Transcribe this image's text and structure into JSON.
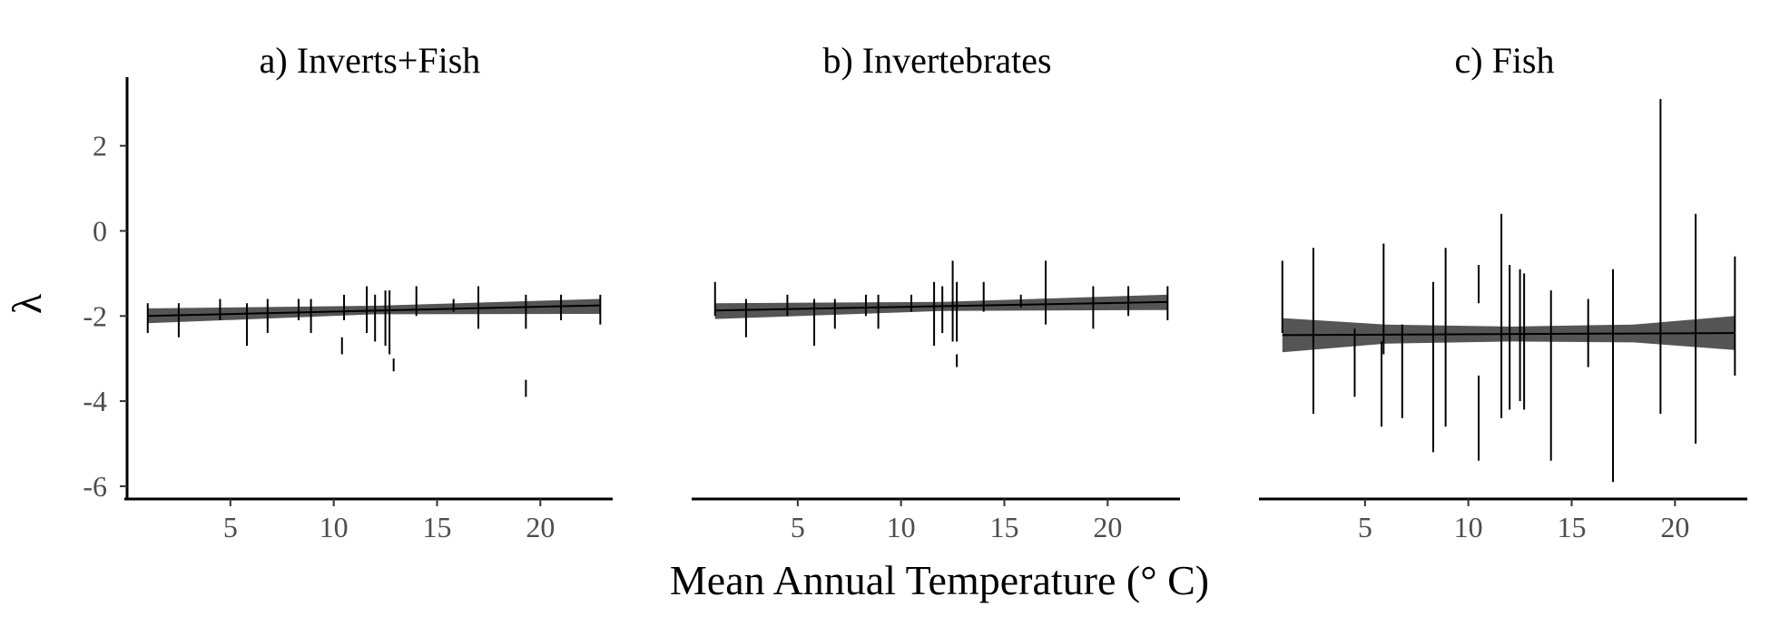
{
  "figure": {
    "xlabel": "Mean Annual Temperature (° C)",
    "ylabel": "λ"
  },
  "chart_data": [
    {
      "type": "scatter",
      "title": "a) Inverts+Fish",
      "xlim": [
        0,
        23.5
      ],
      "ylim": [
        -6.3,
        3.4
      ],
      "x_ticks": [
        5,
        10,
        15,
        20
      ],
      "y_ticks": [
        2,
        0,
        -2,
        -4,
        -6
      ],
      "y_tick_labels": [
        "2",
        "0",
        "-2",
        "-4",
        "-6"
      ],
      "fit": {
        "x": [
          1.0,
          22.9
        ],
        "y": [
          -2.0,
          -1.75
        ]
      },
      "ci": {
        "x": [
          1.0,
          12.0,
          22.9
        ],
        "lower": [
          -2.17,
          -1.96,
          -1.95
        ],
        "upper": [
          -1.82,
          -1.76,
          -1.6
        ]
      },
      "points": [
        {
          "x": 1.0,
          "lo": -2.4,
          "hi": -1.7
        },
        {
          "x": 2.5,
          "lo": -2.5,
          "hi": -1.7
        },
        {
          "x": 4.5,
          "lo": -2.1,
          "hi": -1.6
        },
        {
          "x": 5.8,
          "lo": -2.7,
          "hi": -1.7
        },
        {
          "x": 6.8,
          "lo": -2.4,
          "hi": -1.6
        },
        {
          "x": 8.3,
          "lo": -2.1,
          "hi": -1.6
        },
        {
          "x": 8.9,
          "lo": -2.4,
          "hi": -1.6
        },
        {
          "x": 10.4,
          "lo": -2.9,
          "hi": -2.5
        },
        {
          "x": 10.5,
          "lo": -2.1,
          "hi": -1.5
        },
        {
          "x": 11.6,
          "lo": -2.4,
          "hi": -1.3
        },
        {
          "x": 12.0,
          "lo": -2.6,
          "hi": -1.5
        },
        {
          "x": 12.5,
          "lo": -2.7,
          "hi": -1.4
        },
        {
          "x": 12.7,
          "lo": -2.9,
          "hi": -1.4
        },
        {
          "x": 12.9,
          "lo": -3.3,
          "hi": -3.0
        },
        {
          "x": 14.0,
          "lo": -2.0,
          "hi": -1.3
        },
        {
          "x": 15.8,
          "lo": -1.9,
          "hi": -1.6
        },
        {
          "x": 17.0,
          "lo": -2.3,
          "hi": -1.3
        },
        {
          "x": 19.3,
          "lo": -2.3,
          "hi": -1.5
        },
        {
          "x": 19.3,
          "lo": -3.9,
          "hi": -3.5
        },
        {
          "x": 21.0,
          "lo": -2.1,
          "hi": -1.5
        },
        {
          "x": 22.9,
          "lo": -2.2,
          "hi": -1.5
        }
      ]
    },
    {
      "type": "scatter",
      "title": "b) Invertebrates",
      "xlim": [
        0,
        23.5
      ],
      "ylim": [
        -6.3,
        3.4
      ],
      "x_ticks": [
        5,
        10,
        15,
        20
      ],
      "fit": {
        "x": [
          1.0,
          22.9
        ],
        "y": [
          -1.87,
          -1.67
        ]
      },
      "ci": {
        "x": [
          1.0,
          12.0,
          22.9
        ],
        "lower": [
          -2.07,
          -1.88,
          -1.86
        ],
        "upper": [
          -1.7,
          -1.67,
          -1.5
        ]
      },
      "points": [
        {
          "x": 1.0,
          "lo": -2.0,
          "hi": -1.2
        },
        {
          "x": 2.5,
          "lo": -2.5,
          "hi": -1.6
        },
        {
          "x": 4.5,
          "lo": -2.0,
          "hi": -1.5
        },
        {
          "x": 5.8,
          "lo": -2.7,
          "hi": -1.6
        },
        {
          "x": 6.8,
          "lo": -2.3,
          "hi": -1.6
        },
        {
          "x": 8.3,
          "lo": -2.0,
          "hi": -1.5
        },
        {
          "x": 8.9,
          "lo": -2.3,
          "hi": -1.5
        },
        {
          "x": 10.5,
          "lo": -1.9,
          "hi": -1.5
        },
        {
          "x": 11.6,
          "lo": -2.7,
          "hi": -1.2
        },
        {
          "x": 12.0,
          "lo": -2.4,
          "hi": -1.3
        },
        {
          "x": 12.5,
          "lo": -2.6,
          "hi": -0.7
        },
        {
          "x": 12.7,
          "lo": -2.6,
          "hi": -1.2
        },
        {
          "x": 12.7,
          "lo": -3.2,
          "hi": -2.9
        },
        {
          "x": 14.0,
          "lo": -1.9,
          "hi": -1.2
        },
        {
          "x": 15.8,
          "lo": -1.8,
          "hi": -1.5
        },
        {
          "x": 17.0,
          "lo": -2.2,
          "hi": -0.7
        },
        {
          "x": 19.3,
          "lo": -2.3,
          "hi": -1.3
        },
        {
          "x": 21.0,
          "lo": -2.0,
          "hi": -1.3
        },
        {
          "x": 22.9,
          "lo": -2.1,
          "hi": -1.3
        }
      ]
    },
    {
      "type": "scatter",
      "title": "c) Fish",
      "xlim": [
        0,
        23.5
      ],
      "ylim": [
        -6.3,
        3.4
      ],
      "x_ticks": [
        5,
        10,
        15,
        20
      ],
      "fit": {
        "x": [
          1.0,
          22.9
        ],
        "y": [
          -2.45,
          -2.4
        ]
      },
      "ci": {
        "x": [
          1.0,
          6.0,
          12.0,
          18.0,
          22.9
        ],
        "lower": [
          -2.85,
          -2.65,
          -2.6,
          -2.62,
          -2.8
        ],
        "upper": [
          -2.05,
          -2.2,
          -2.25,
          -2.2,
          -2.0
        ]
      },
      "points": [
        {
          "x": 1.0,
          "lo": -2.4,
          "hi": -0.7
        },
        {
          "x": 2.5,
          "lo": -4.3,
          "hi": -0.4
        },
        {
          "x": 4.5,
          "lo": -3.9,
          "hi": -2.3
        },
        {
          "x": 5.8,
          "lo": -4.6,
          "hi": -2.6
        },
        {
          "x": 5.9,
          "lo": -2.9,
          "hi": -0.3
        },
        {
          "x": 6.8,
          "lo": -4.4,
          "hi": -2.2
        },
        {
          "x": 8.3,
          "lo": -5.2,
          "hi": -1.2
        },
        {
          "x": 8.9,
          "lo": -4.6,
          "hi": -0.4
        },
        {
          "x": 10.5,
          "lo": -5.4,
          "hi": -3.4
        },
        {
          "x": 10.5,
          "lo": -1.7,
          "hi": -0.8
        },
        {
          "x": 11.6,
          "lo": -4.4,
          "hi": 0.4
        },
        {
          "x": 12.0,
          "lo": -4.2,
          "hi": -0.8
        },
        {
          "x": 12.5,
          "lo": -4.0,
          "hi": -0.9
        },
        {
          "x": 12.7,
          "lo": -4.2,
          "hi": -1.0
        },
        {
          "x": 14.0,
          "lo": -5.4,
          "hi": -1.4
        },
        {
          "x": 15.8,
          "lo": -3.2,
          "hi": -1.6
        },
        {
          "x": 17.0,
          "lo": -5.9,
          "hi": -0.9
        },
        {
          "x": 19.3,
          "lo": -4.3,
          "hi": 3.1
        },
        {
          "x": 21.0,
          "lo": -5.0,
          "hi": 0.4
        },
        {
          "x": 22.9,
          "lo": -3.4,
          "hi": -0.6
        }
      ]
    }
  ]
}
